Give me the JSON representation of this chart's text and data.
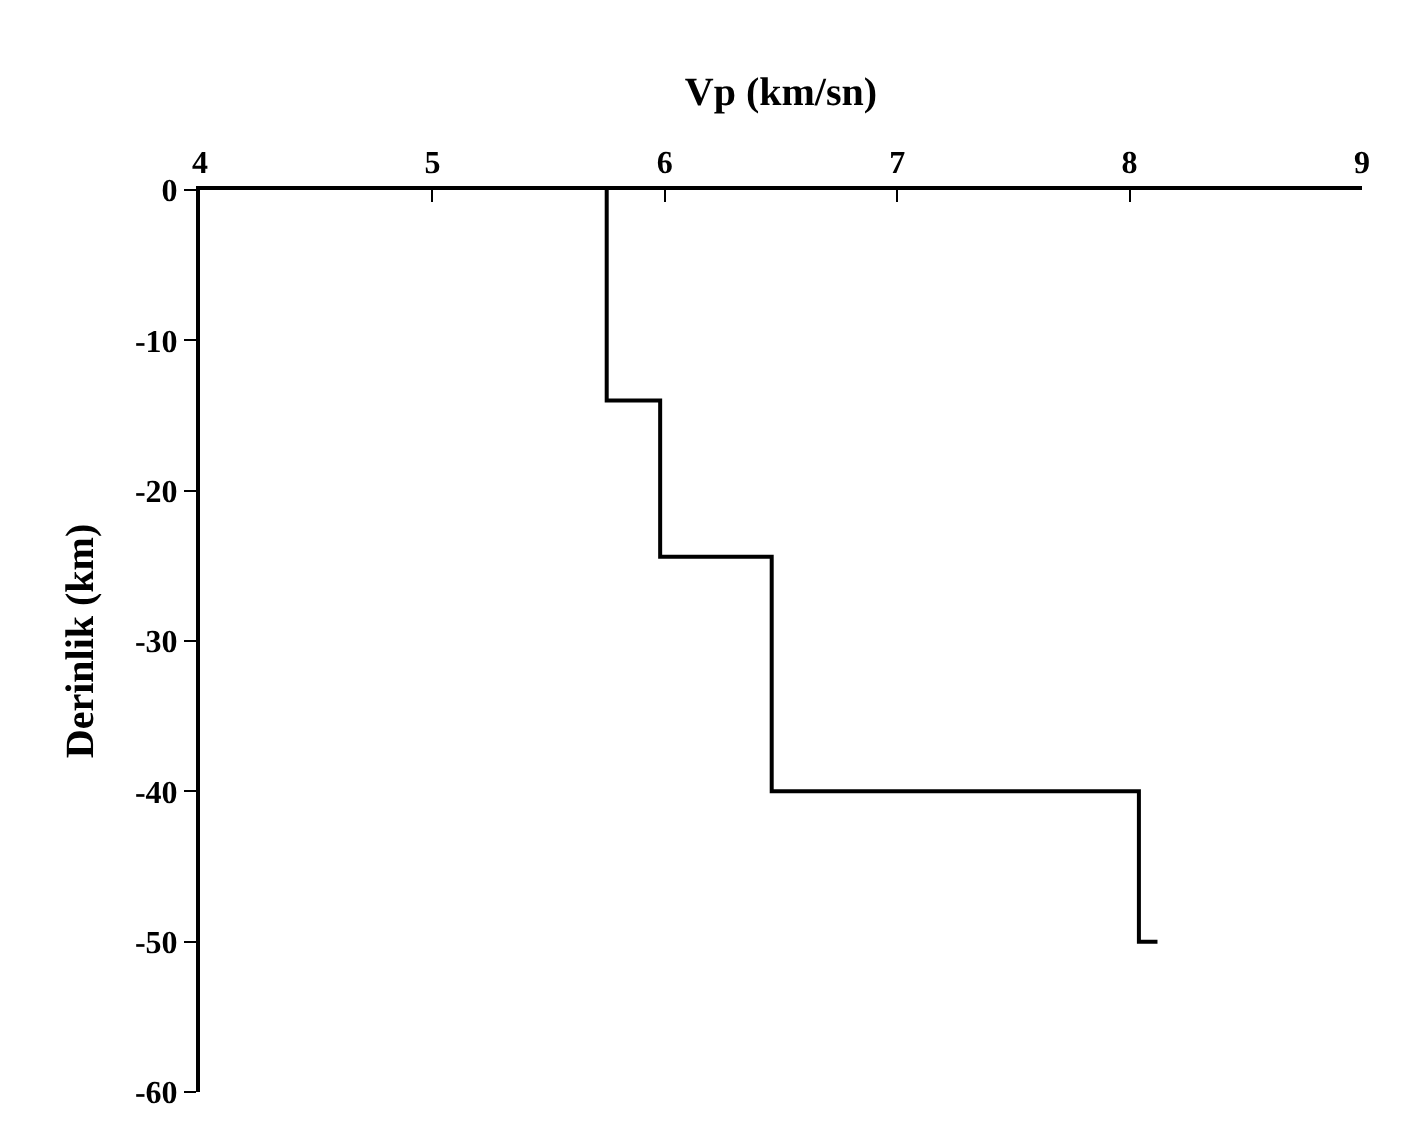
{
  "chart_data": {
    "type": "line",
    "xlabel": "Vp (km/sn)",
    "ylabel": "Derinlik (km)",
    "xlim": [
      4,
      9
    ],
    "xticks": [
      4,
      5,
      6,
      7,
      8,
      9
    ],
    "ylim": [
      -60,
      0
    ],
    "yticks": [
      0,
      -10,
      -20,
      -30,
      -40,
      -50,
      -60
    ],
    "marker": "none",
    "line_style": "solid",
    "series": [
      {
        "color": "#000000",
        "x": [
          5.75,
          5.75,
          5.98,
          5.98,
          6.46,
          6.46,
          8.04,
          8.04,
          8.12
        ],
        "values": [
          0,
          -14,
          -14,
          -24.4,
          -24.4,
          -40,
          -40,
          -50,
          -50
        ]
      }
    ]
  }
}
